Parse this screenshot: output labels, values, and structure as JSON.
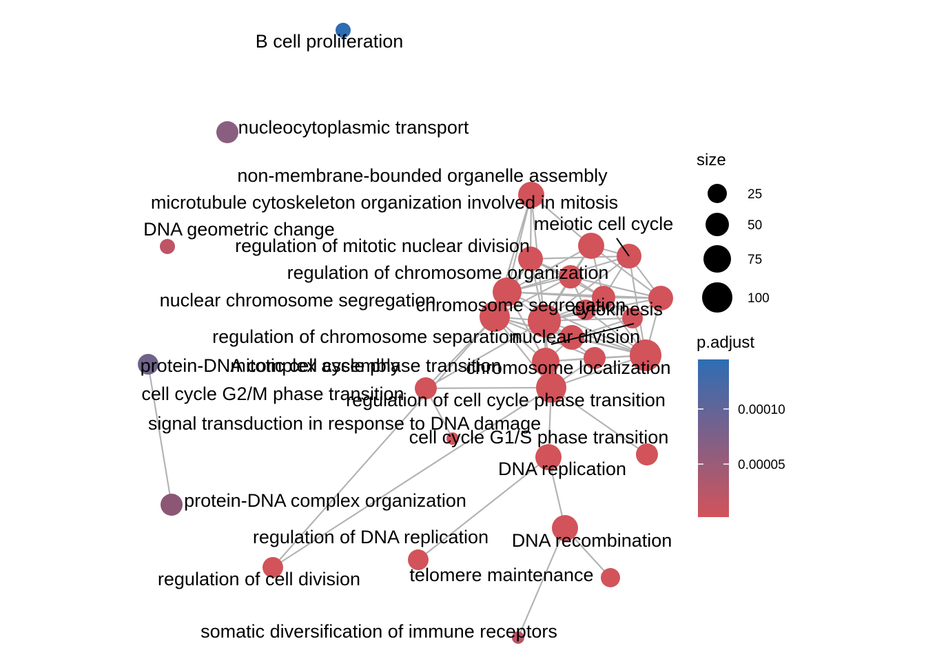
{
  "network": {
    "nodes": [
      {
        "id": "bcell",
        "label": "B cell proliferation",
        "color": "#2E6DB4"
      },
      {
        "id": "nucleo",
        "label": "nucleocytoplasmic transport",
        "color": "#8A5E80"
      },
      {
        "id": "nonmem",
        "label": "non-membrane-bounded organelle assembly",
        "color": "#D2535A"
      },
      {
        "id": "microtub",
        "label": "microtubule cytoskeleton organization involved in mitosis",
        "color": "#D2535A"
      },
      {
        "id": "meiotic",
        "label": "meiotic cell cycle",
        "color": "#D2535A"
      },
      {
        "id": "dnageo",
        "label": "DNA geometric change",
        "color": "#BF5465"
      },
      {
        "id": "regmitnuc",
        "label": "regulation of mitotic nuclear division",
        "color": "#D2535A"
      },
      {
        "id": "regchromorg",
        "label": "regulation of chromosome organization",
        "color": "#D2535A"
      },
      {
        "id": "nucchromseg",
        "label": "nuclear chromosome segregation",
        "color": "#D2535A"
      },
      {
        "id": "chromseg",
        "label": "chromosome segregation",
        "color": "#D2535A"
      },
      {
        "id": "cytokinesis",
        "label": "cytokinesis",
        "color": "#D2535A"
      },
      {
        "id": "regchromsep",
        "label": "regulation of chromosome separation",
        "color": "#D2535A"
      },
      {
        "id": "nucdiv",
        "label": "nuclear division",
        "color": "#D2535A"
      },
      {
        "id": "protdnaasm",
        "label": "protein-DNA complex assembly",
        "color": "#6F6389"
      },
      {
        "id": "mitphase",
        "label": "mitotic cell cycle phase transition",
        "color": "#D2535A"
      },
      {
        "id": "chromloc",
        "label": "chromosome localization",
        "color": "#D2535A"
      },
      {
        "id": "g2m",
        "label": "cell cycle G2/M phase transition",
        "color": "#D2535A"
      },
      {
        "id": "regccpt",
        "label": "regulation of cell cycle phase transition",
        "color": "#D2535A"
      },
      {
        "id": "sigdna",
        "label": "signal transduction in response to DNA damage",
        "color": "#D2535A"
      },
      {
        "id": "g1s",
        "label": "cell cycle G1/S phase transition",
        "color": "#D2535A"
      },
      {
        "id": "dnarep",
        "label": "DNA replication",
        "color": "#D2535A"
      },
      {
        "id": "protdnaorg",
        "label": "protein-DNA complex organization",
        "color": "#8C5675"
      },
      {
        "id": "regdnarep",
        "label": "regulation of DNA replication",
        "color": "#D2535A"
      },
      {
        "id": "dnarec",
        "label": "DNA recombination",
        "color": "#D2535A"
      },
      {
        "id": "regcelldiv",
        "label": "regulation of cell division",
        "color": "#D2535A"
      },
      {
        "id": "telomere",
        "label": "telomere maintenance",
        "color": "#D2535A"
      },
      {
        "id": "somatic",
        "label": "somatic diversification of immune receptors",
        "color": "#B95567"
      },
      {
        "id": "hub1",
        "label": "",
        "color": "#D2535A"
      },
      {
        "id": "hub2",
        "label": "",
        "color": "#D2535A"
      },
      {
        "id": "hub3",
        "label": "",
        "color": "#D2535A"
      },
      {
        "id": "hub4",
        "label": "",
        "color": "#D2535A"
      }
    ],
    "edge_color": "#b3b3b3"
  },
  "legend": {
    "size_title": "size",
    "size_items": [
      {
        "label": "25"
      },
      {
        "label": "50"
      },
      {
        "label": "75"
      },
      {
        "label": "100"
      }
    ],
    "color_title": "p.adjust",
    "color_high": "#2E6DB4",
    "color_low": "#D2535A",
    "color_ticks": [
      "0.00010",
      "0.00005"
    ]
  }
}
